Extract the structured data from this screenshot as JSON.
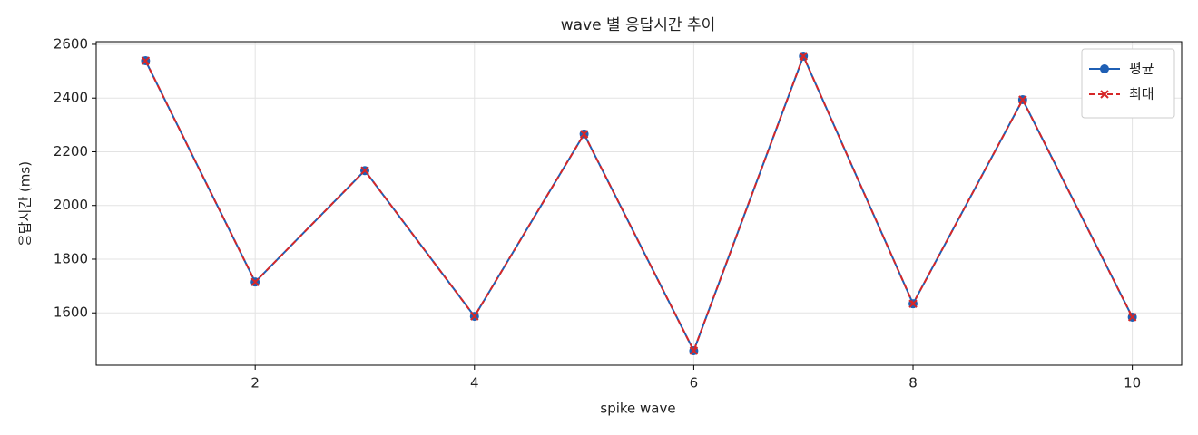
{
  "chart_data": {
    "type": "line",
    "title": "wave 별 응답시간 추이",
    "x_label": "spike wave",
    "y_label": "응답시간 (ms)",
    "x": [
      1,
      2,
      3,
      4,
      5,
      6,
      7,
      8,
      9,
      10
    ],
    "series": [
      {
        "name": "평균",
        "color": "#1f5fb4",
        "marker": "circle",
        "dash": false,
        "values": [
          2539,
          1715,
          2130,
          1587,
          2266,
          1459,
          2556,
          1634,
          2394,
          1584
        ]
      },
      {
        "name": "최대",
        "color": "#d62728",
        "marker": "x",
        "dash": true,
        "values": [
          2539,
          1715,
          2130,
          1587,
          2266,
          1459,
          2556,
          1634,
          2394,
          1584
        ]
      }
    ],
    "xlim": [
      0.55,
      10.45
    ],
    "xticks": [
      2,
      4,
      6,
      8,
      10
    ],
    "ylim": [
      1405,
      2610
    ],
    "yticks": [
      1600,
      1800,
      2000,
      2200,
      2400,
      2600
    ],
    "grid": true,
    "legend": "upper right"
  }
}
